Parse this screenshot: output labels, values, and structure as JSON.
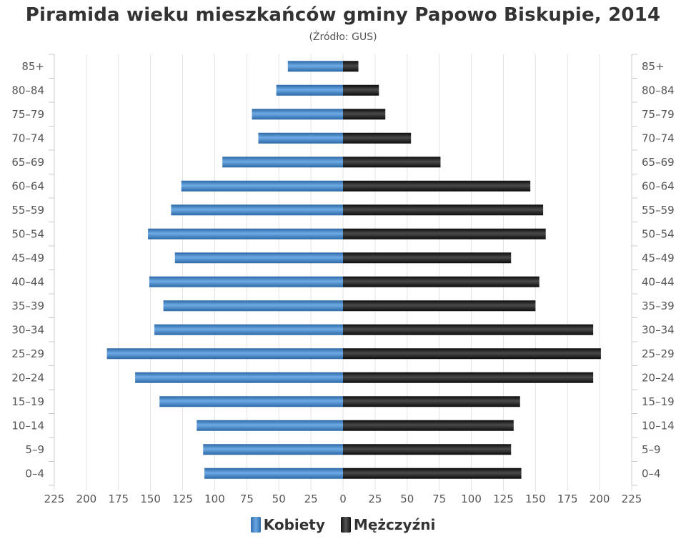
{
  "chart_data": {
    "type": "bar",
    "orientation": "horizontal-pyramid",
    "title": "Piramida wieku mieszkańców gminy Papowo Biskupie, 2014",
    "subtitle": "(Źródło: GUS)",
    "categories": [
      "0–4",
      "5–9",
      "10–14",
      "15–19",
      "20–24",
      "25–29",
      "30–34",
      "35–39",
      "40–44",
      "45–49",
      "50–54",
      "55–59",
      "60–64",
      "65–69",
      "70–74",
      "75–79",
      "80–84",
      "85+"
    ],
    "series": [
      {
        "name": "Kobiety",
        "color": "#3a7fc4",
        "values": [
          108,
          109,
          114,
          143,
          162,
          184,
          147,
          140,
          151,
          131,
          152,
          134,
          126,
          94,
          66,
          71,
          52,
          43
        ]
      },
      {
        "name": "Mężczyźni",
        "color": "#1a1a1a",
        "values": [
          139,
          131,
          133,
          138,
          195,
          201,
          195,
          150,
          153,
          131,
          158,
          156,
          146,
          76,
          53,
          33,
          28,
          12
        ]
      }
    ],
    "xlim": [
      -225,
      225
    ],
    "xticks": [
      "225",
      "200",
      "175",
      "150",
      "125",
      "100",
      "75",
      "50",
      "25",
      "0",
      "25",
      "50",
      "75",
      "100",
      "125",
      "150",
      "175",
      "200",
      "225"
    ],
    "grid": true,
    "legend": "bottom-center"
  }
}
